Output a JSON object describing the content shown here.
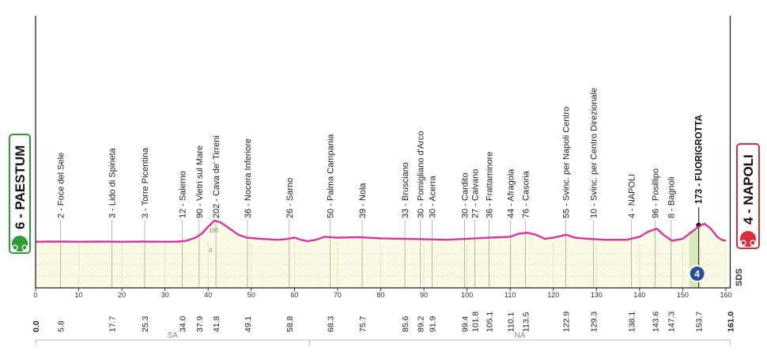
{
  "chart_data": {
    "type": "area",
    "xlim": [
      0,
      160
    ],
    "ylim": [
      0,
      250
    ],
    "x_ticks": [
      0,
      10,
      20,
      30,
      40,
      50,
      60,
      70,
      80,
      90,
      100,
      110,
      120,
      130,
      140,
      150,
      160
    ],
    "profile": [
      [
        0,
        5
      ],
      [
        3,
        6
      ],
      [
        6,
        6
      ],
      [
        10,
        5
      ],
      [
        15,
        6
      ],
      [
        20,
        5
      ],
      [
        25,
        6
      ],
      [
        30,
        5
      ],
      [
        33,
        6
      ],
      [
        35,
        10
      ],
      [
        37,
        25
      ],
      [
        38.5,
        45
      ],
      [
        40,
        80
      ],
      [
        41.5,
        110
      ],
      [
        43,
        100
      ],
      [
        45,
        70
      ],
      [
        47,
        40
      ],
      [
        49,
        25
      ],
      [
        52,
        20
      ],
      [
        56,
        15
      ],
      [
        58,
        18
      ],
      [
        60,
        26
      ],
      [
        61.5,
        15
      ],
      [
        63,
        8
      ],
      [
        65,
        15
      ],
      [
        67,
        30
      ],
      [
        70,
        25
      ],
      [
        75,
        28
      ],
      [
        80,
        22
      ],
      [
        85,
        20
      ],
      [
        90,
        18
      ],
      [
        95,
        15
      ],
      [
        100,
        20
      ],
      [
        105,
        25
      ],
      [
        110,
        30
      ],
      [
        112,
        45
      ],
      [
        114,
        50
      ],
      [
        116,
        40
      ],
      [
        118,
        20
      ],
      [
        120,
        25
      ],
      [
        123,
        40
      ],
      [
        125,
        25
      ],
      [
        128,
        20
      ],
      [
        132,
        15
      ],
      [
        137,
        15
      ],
      [
        140,
        30
      ],
      [
        142,
        55
      ],
      [
        144,
        70
      ],
      [
        145.5,
        40
      ],
      [
        147.5,
        10
      ],
      [
        150,
        20
      ],
      [
        153.7,
        80
      ],
      [
        155,
        95
      ],
      [
        156.5,
        70
      ],
      [
        158,
        30
      ],
      [
        159,
        15
      ],
      [
        160,
        10
      ]
    ],
    "profile_labels": [
      {
        "x": 41.3,
        "y": 100,
        "text": "100"
      },
      {
        "x": 41.3,
        "y": 0,
        "text": "0"
      }
    ],
    "waypoints": [
      {
        "x": 5.8,
        "label": "2 - Foce del Sele",
        "km": "5.8"
      },
      {
        "x": 17.7,
        "label": "3 - Lido di Spineta",
        "km": "17.7"
      },
      {
        "x": 25.3,
        "label": "3 - Torre Picentina",
        "km": "25.3"
      },
      {
        "x": 34.0,
        "label": "12 - Salerno",
        "km": "34.0"
      },
      {
        "x": 37.9,
        "label": "90 - Vietri sul Mare",
        "km": "37.9"
      },
      {
        "x": 41.8,
        "label": "202 - Cava de' Tirreni",
        "km": "41.8"
      },
      {
        "x": 49.1,
        "label": "36 - Nocera Inferiore",
        "km": "49.1"
      },
      {
        "x": 58.8,
        "label": "26 - Sarno",
        "km": "58.8"
      },
      {
        "x": 68.3,
        "label": "50 - Palma Campania",
        "km": "68.3"
      },
      {
        "x": 75.7,
        "label": "39 - Nola",
        "km": "75.7"
      },
      {
        "x": 85.6,
        "label": "33 - Brusciano",
        "km": "85.6"
      },
      {
        "x": 89.2,
        "label": "30 - Pomigliano d'Arco",
        "km": "89.2"
      },
      {
        "x": 91.9,
        "label": "30 - Acerra",
        "km": "91.9"
      },
      {
        "x": 99.4,
        "label": "30 - Cardito",
        "km": "99.4"
      },
      {
        "x": 101.8,
        "label": "27 - Caivano",
        "km": "101.8"
      },
      {
        "x": 105.1,
        "label": "36 - Frattaminore",
        "km": "105.1"
      },
      {
        "x": 110.1,
        "label": "44 - Afragola",
        "km": "110.1"
      },
      {
        "x": 113.5,
        "label": "76 - Casoria",
        "km": "113.5"
      },
      {
        "x": 122.9,
        "label": "55 - Svinc. per Napoli Centro",
        "km": "122.9"
      },
      {
        "x": 129.3,
        "label": "10 - Svinc. per Centro Direzionale",
        "km": "129.3"
      },
      {
        "x": 138.1,
        "label": "4 - NAPOLI",
        "km": "138.1"
      },
      {
        "x": 143.6,
        "label": "96 - Posillipo",
        "km": "143.6"
      },
      {
        "x": 147.3,
        "label": "8 - Bagnoli",
        "km": "147.3"
      }
    ],
    "finish_line": {
      "x": 153.7,
      "label": "173 - FUORIGROTTA",
      "km": "153.7",
      "badge": "4"
    },
    "km_start": "0.0",
    "km_end": "161.0",
    "start": {
      "label": "6 - PAESTUM"
    },
    "finish": {
      "label": "4 - NAPOLI"
    },
    "regions": [
      {
        "name": "SA",
        "x_start": 0,
        "x_end": 63.5
      },
      {
        "name": "NA",
        "x_start": 63.5,
        "x_end": 161
      }
    ],
    "side_marker": "SDS",
    "colors": {
      "profile_line": "#d6359f",
      "fill": "#fbfbe6",
      "start_green": "#2f9a3a",
      "finish_red": "#d92f3a",
      "finish_badge": "#2a4f9a",
      "sprint_zone": "#cfe7b0"
    }
  }
}
